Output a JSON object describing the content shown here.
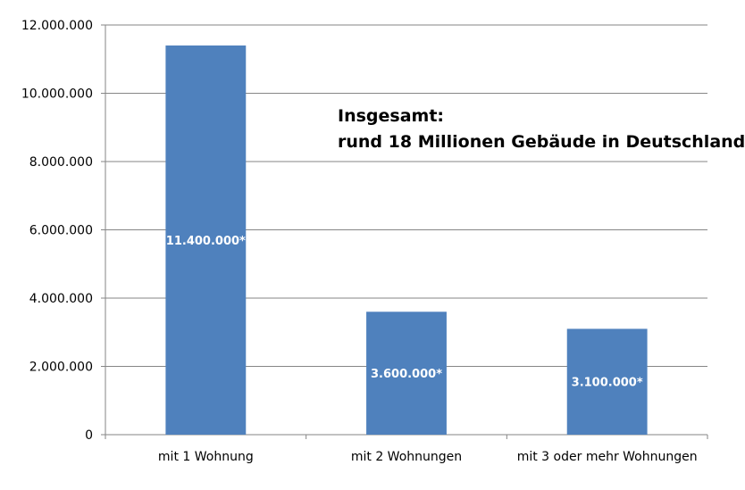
{
  "chart_data": {
    "type": "bar",
    "categories": [
      "mit 1 Wohnung",
      "mit 2 Wohnungen",
      "mit 3 oder mehr Wohnungen"
    ],
    "values": [
      11400000,
      3600000,
      3100000
    ],
    "data_labels": [
      "11.400.000*",
      "3.600.000*",
      "3.100.000*"
    ],
    "title": "",
    "xlabel": "",
    "ylabel": "",
    "ylim": [
      0,
      12000000
    ],
    "yticks": [
      0,
      2000000,
      4000000,
      6000000,
      8000000,
      10000000,
      12000000
    ],
    "ytick_labels": [
      "0",
      "2.000.000",
      "4.000.000",
      "6.000.000",
      "8.000.000",
      "10.000.000",
      "12.000.000"
    ],
    "grid": true,
    "legend": "none",
    "bar_color": "#4f81bd",
    "annotation": [
      "Insgesamt:",
      "rund 18 Millionen Gebäude in Deutschland"
    ]
  }
}
